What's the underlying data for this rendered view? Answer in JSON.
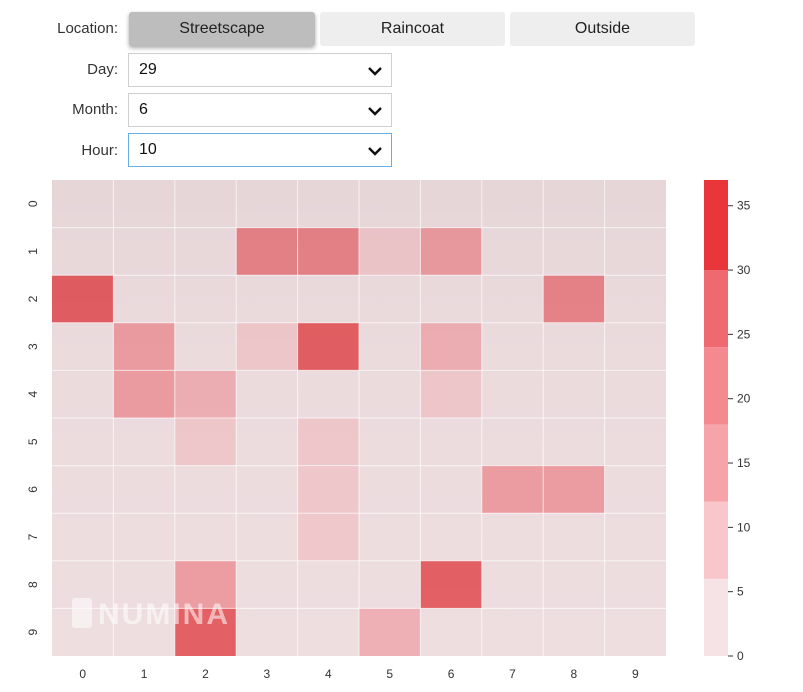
{
  "controls": {
    "location_label": "Location:",
    "location_options": [
      "Streetscape",
      "Raincoat",
      "Outside"
    ],
    "location_selected": "Streetscape",
    "day_label": "Day:",
    "day_value": "29",
    "month_label": "Month:",
    "month_value": "6",
    "hour_label": "Hour:",
    "hour_value": "10"
  },
  "colors": {
    "accent_red": "#e8363a",
    "button_active": "#bdbdbd",
    "button_inactive": "#eeeeee",
    "focus_border": "#66afe9"
  },
  "chart_data": {
    "type": "heatmap",
    "title": "",
    "xlabel": "",
    "ylabel": "",
    "x_ticks": [
      "0",
      "1",
      "2",
      "3",
      "4",
      "5",
      "6",
      "7",
      "8",
      "9"
    ],
    "y_ticks": [
      "0",
      "1",
      "2",
      "3",
      "4",
      "5",
      "6",
      "7",
      "8",
      "9"
    ],
    "values": [
      [
        3,
        3,
        3,
        3,
        3,
        3,
        3,
        3,
        3,
        3
      ],
      [
        3,
        3,
        3,
        25,
        25,
        8,
        20,
        3,
        3,
        3
      ],
      [
        35,
        3,
        3,
        3,
        3,
        3,
        3,
        3,
        25,
        3
      ],
      [
        3,
        20,
        3,
        10,
        38,
        3,
        15,
        3,
        3,
        3
      ],
      [
        3,
        20,
        15,
        3,
        3,
        3,
        10,
        3,
        3,
        3
      ],
      [
        3,
        3,
        10,
        3,
        10,
        3,
        3,
        3,
        3,
        3
      ],
      [
        3,
        3,
        3,
        3,
        8,
        3,
        3,
        20,
        20,
        3
      ],
      [
        3,
        3,
        3,
        3,
        8,
        3,
        3,
        3,
        3,
        3
      ],
      [
        3,
        3,
        20,
        3,
        3,
        3,
        40,
        3,
        3,
        3
      ],
      [
        3,
        3,
        40,
        3,
        3,
        15,
        3,
        3,
        3,
        3
      ]
    ],
    "colorbar": {
      "ticks": [
        0,
        5,
        10,
        15,
        20,
        25,
        30,
        35
      ],
      "bands": [
        {
          "max": 6,
          "color": "#f6e3e6"
        },
        {
          "max": 12,
          "color": "#f8c6cb"
        },
        {
          "max": 18,
          "color": "#f6a4aa"
        },
        {
          "max": 24,
          "color": "#f48a90"
        },
        {
          "max": 30,
          "color": "#ee6a70"
        },
        {
          "max": 37,
          "color": "#e8363a"
        }
      ]
    },
    "watermark": "NUMINA",
    "grid": true
  }
}
